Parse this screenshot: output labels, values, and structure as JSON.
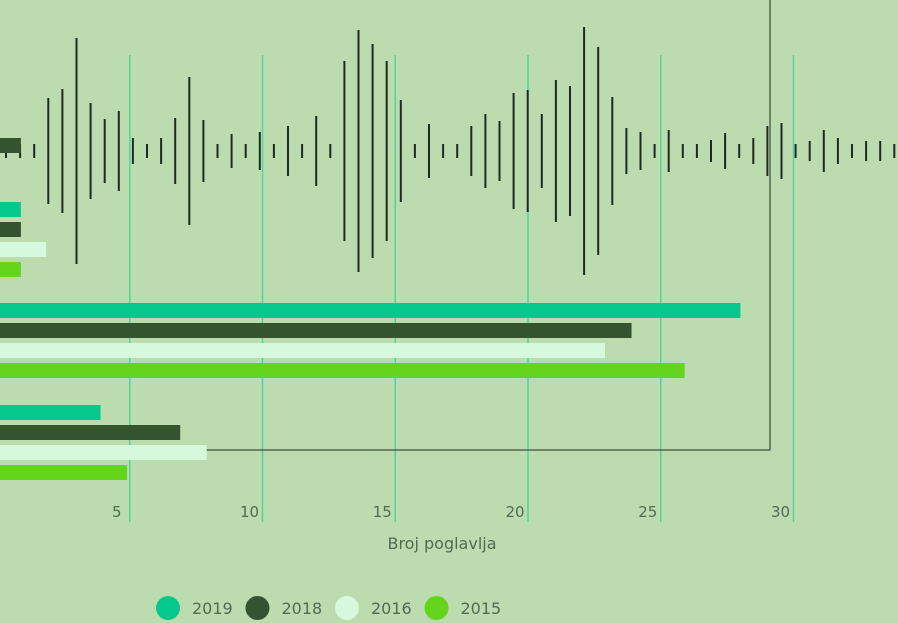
{
  "colors": {
    "background": "#bcdcb0",
    "grid": "#52d39a",
    "waveform": "#1f2b22",
    "frame": "#1f2b22"
  },
  "chart_data": {
    "type": "bar",
    "orientation": "horizontal",
    "xlabel": "Broj poglavlja",
    "ylabel": "",
    "xlim": [
      0,
      33.8
    ],
    "xticks": [
      5,
      10,
      15,
      20,
      25,
      30
    ],
    "grid": true,
    "legend_position": "bottom",
    "series": [
      {
        "name": "2019",
        "color": "#06c88f",
        "values": [
          null,
          0.9,
          28.0,
          3.9
        ]
      },
      {
        "name": "2018",
        "color": "#33542f",
        "values": [
          0.9,
          0.9,
          23.9,
          6.9
        ]
      },
      {
        "name": "2016",
        "color": "#d6f8dc",
        "values": [
          null,
          1.85,
          22.9,
          7.9
        ]
      },
      {
        "name": "2015",
        "color": "#64d41c",
        "values": [
          null,
          0.9,
          25.9,
          4.9
        ]
      }
    ],
    "waveform_amplitudes": [
      7,
      7,
      7,
      53,
      62,
      113,
      48,
      32,
      40,
      13,
      7,
      13,
      33,
      74,
      31,
      7,
      17,
      7,
      19,
      7,
      25,
      7,
      35,
      7,
      90,
      121,
      107,
      90,
      51,
      7,
      27,
      7,
      7,
      25,
      37,
      30,
      58,
      61,
      37,
      71,
      65,
      124,
      104,
      54,
      23,
      19,
      7,
      21,
      7,
      7,
      11,
      18,
      7,
      13,
      25,
      28,
      7,
      10,
      21,
      13,
      7,
      10,
      10,
      7,
      7,
      13,
      7,
      7
    ]
  }
}
